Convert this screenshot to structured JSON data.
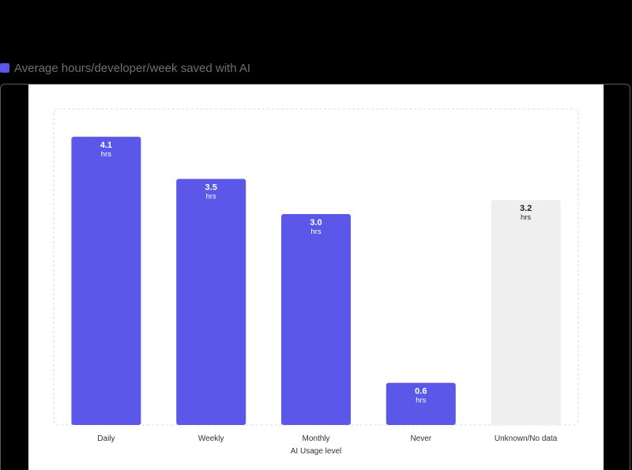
{
  "legend": {
    "label": "Average hours/developer/week saved with AI",
    "color": "#5b57e8"
  },
  "chart_data": {
    "type": "bar",
    "title": "",
    "xlabel": "AI Usage level",
    "ylabel": "",
    "ylim": [
      0,
      4.5
    ],
    "grid": false,
    "legend_position": "top-left",
    "categories": [
      "Daily",
      "Weekly",
      "Monthly",
      "Never",
      "Unknown/No data"
    ],
    "series": [
      {
        "name": "Average hours/developer/week saved with AI",
        "values": [
          4.1,
          3.5,
          3.0,
          0.6,
          3.2
        ]
      }
    ],
    "value_labels": [
      "4.1",
      "3.5",
      "3.0",
      "0.6",
      "3.2"
    ],
    "unit_label": "hrs",
    "bar_colors": [
      "#5b57e8",
      "#5b57e8",
      "#5b57e8",
      "#5b57e8",
      "#efefef"
    ],
    "label_colors": [
      "#ffffff",
      "#ffffff",
      "#ffffff",
      "#ffffff",
      "#222222"
    ],
    "axis_text_color": "#333333"
  }
}
